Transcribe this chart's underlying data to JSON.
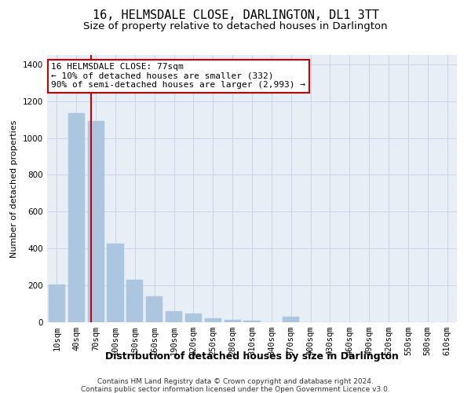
{
  "title": "16, HELMSDALE CLOSE, DARLINGTON, DL1 3TT",
  "subtitle": "Size of property relative to detached houses in Darlington",
  "xlabel": "Distribution of detached houses by size in Darlington",
  "ylabel": "Number of detached properties",
  "footnote1": "Contains HM Land Registry data © Crown copyright and database right 2024.",
  "footnote2": "Contains public sector information licensed under the Open Government Licence v3.0.",
  "bin_labels": [
    "10sqm",
    "40sqm",
    "70sqm",
    "100sqm",
    "130sqm",
    "160sqm",
    "190sqm",
    "220sqm",
    "250sqm",
    "280sqm",
    "310sqm",
    "340sqm",
    "370sqm",
    "400sqm",
    "430sqm",
    "460sqm",
    "490sqm",
    "520sqm",
    "550sqm",
    "580sqm",
    "610sqm"
  ],
  "bar_values": [
    205,
    1135,
    1090,
    425,
    230,
    140,
    60,
    45,
    20,
    12,
    10,
    0,
    30,
    0,
    0,
    0,
    0,
    0,
    0,
    0,
    0
  ],
  "bar_color": "#adc6e0",
  "bar_edge_color": "#adc6e0",
  "grid_color": "#c8d4e8",
  "background_color": "#e8eef6",
  "red_line_x": 1.77,
  "red_line_color": "#cc0000",
  "annotation_text": "16 HELMSDALE CLOSE: 77sqm\n← 10% of detached houses are smaller (332)\n90% of semi-detached houses are larger (2,993) →",
  "annotation_box_facecolor": "#ffffff",
  "annotation_box_edgecolor": "#cc0000",
  "ylim": [
    0,
    1450
  ],
  "yticks": [
    0,
    200,
    400,
    600,
    800,
    1000,
    1200,
    1400
  ],
  "title_fontsize": 11,
  "subtitle_fontsize": 9.5,
  "xlabel_fontsize": 9,
  "ylabel_fontsize": 8,
  "annotation_fontsize": 8,
  "tick_fontsize": 7.5,
  "footnote_fontsize": 6.5
}
